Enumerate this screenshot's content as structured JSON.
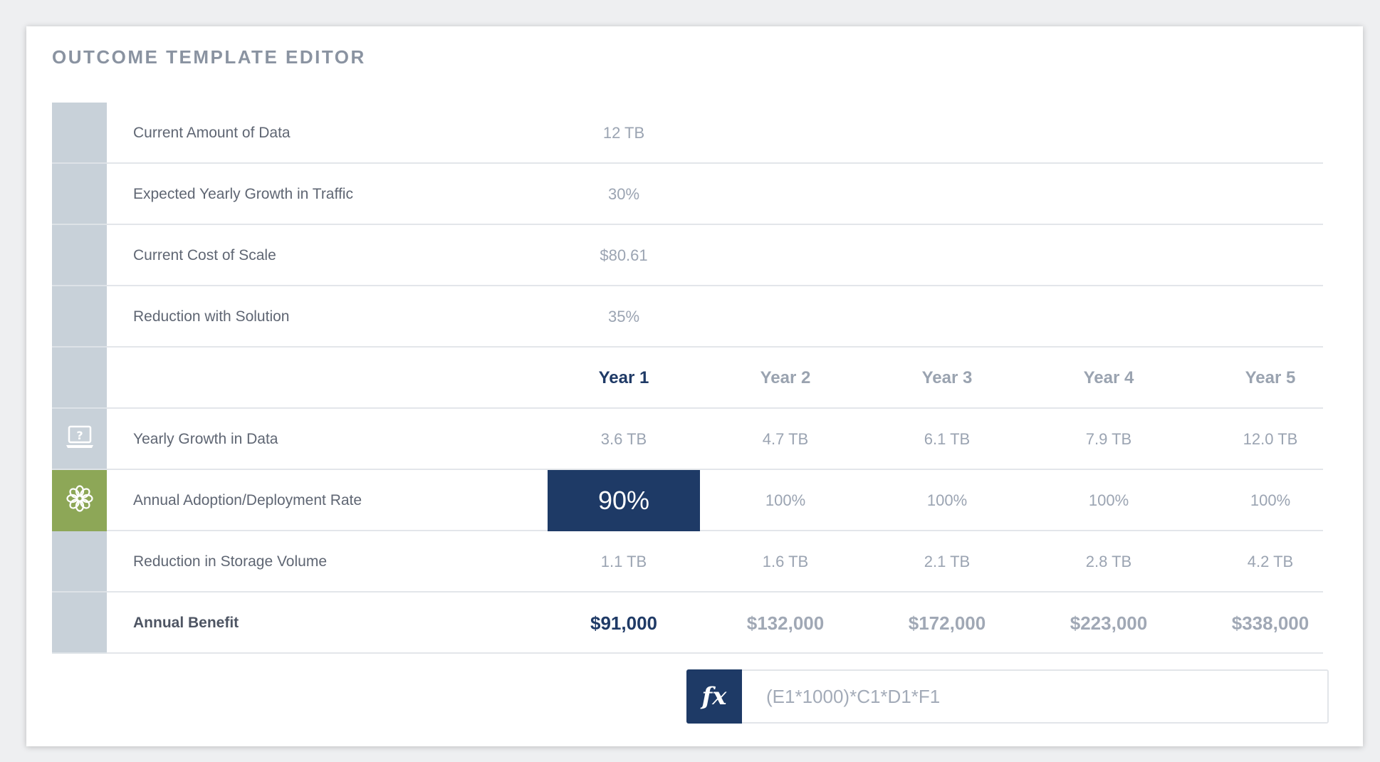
{
  "editor": {
    "title": "OUTCOME TEMPLATE EDITOR"
  },
  "inputs": [
    {
      "label": "Current Amount of Data",
      "value": "12 TB"
    },
    {
      "label": "Expected Yearly Growth in Traffic",
      "value": "30%"
    },
    {
      "label": "Current Cost of Scale",
      "value": "$80.61"
    },
    {
      "label": "Reduction with Solution",
      "value": "35%"
    }
  ],
  "years": [
    "Year 1",
    "Year 2",
    "Year 3",
    "Year 4",
    "Year 5"
  ],
  "active_year_index": 0,
  "rows": [
    {
      "label": "Yearly Growth in Data",
      "icon": "laptop-question-icon",
      "values": [
        "3.6 TB",
        "4.7 TB",
        "6.1 TB",
        "7.9 TB",
        "12.0 TB"
      ]
    },
    {
      "label": "Annual Adoption/Deployment Rate",
      "icon": "flower-icon",
      "values": [
        "90%",
        "100%",
        "100%",
        "100%",
        "100%"
      ]
    },
    {
      "label": "Reduction in Storage Volume",
      "values": [
        "1.1 TB",
        "1.6 TB",
        "2.1 TB",
        "2.8 TB",
        "4.2 TB"
      ]
    },
    {
      "label": "Annual Benefit",
      "values": [
        "$91,000",
        "$132,000",
        "$172,000",
        "$223,000",
        "$338,000"
      ]
    }
  ],
  "formula": {
    "icon_label": "fx",
    "expression": "(E1*1000)*C1*D1*F1"
  },
  "colors": {
    "accent": "#1e3a66",
    "gutter": "#c8d1d9",
    "highlight_gutter": "#8da757"
  }
}
